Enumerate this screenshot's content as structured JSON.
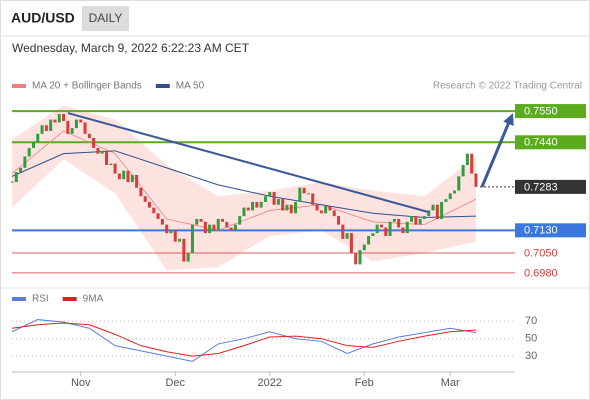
{
  "chart_data": {
    "type": "candlestick",
    "title": "AUD/USD",
    "timeframe": "DAILY",
    "subtitle": "Wednesday, March 9, 2022 6:22:23 AM CET",
    "source": "Research © 2022 Trading Central",
    "up_color": "#2e9e3e",
    "down_color": "#d83b3b",
    "close": [
      0.73,
      0.7335,
      0.735,
      0.739,
      0.742,
      0.744,
      0.747,
      0.75,
      0.748,
      0.752,
      0.751,
      0.754,
      0.7515,
      0.747,
      0.749,
      0.752,
      0.751,
      0.747,
      0.7455,
      0.742,
      0.74,
      0.741,
      0.736,
      0.7365,
      0.733,
      0.731,
      0.734,
      0.73,
      0.7325,
      0.728,
      0.725,
      0.723,
      0.721,
      0.719,
      0.717,
      0.715,
      0.712,
      0.713,
      0.709,
      0.71,
      0.702,
      0.705,
      0.715,
      0.717,
      0.716,
      0.712,
      0.715,
      0.713,
      0.717,
      0.716,
      0.714,
      0.713,
      0.715,
      0.718,
      0.721,
      0.72,
      0.723,
      0.721,
      0.723,
      0.725,
      0.7265,
      0.722,
      0.724,
      0.72,
      0.722,
      0.719,
      0.723,
      0.728,
      0.726,
      0.726,
      0.722,
      0.72,
      0.719,
      0.7215,
      0.72,
      0.718,
      0.715,
      0.71,
      0.712,
      0.705,
      0.701,
      0.706,
      0.708,
      0.711,
      0.712,
      0.715,
      0.714,
      0.711,
      0.716,
      0.717,
      0.714,
      0.712,
      0.716,
      0.718,
      0.715,
      0.717,
      0.718,
      0.72,
      0.722,
      0.717,
      0.723,
      0.724,
      0.726,
      0.727,
      0.732,
      0.736,
      0.74,
      0.733,
      0.7283
    ],
    "xlim": [
      0,
      108
    ],
    "ylim": [
      0.6955,
      0.7589
    ],
    "xticks": [
      {
        "value": 16,
        "label": "Nov"
      },
      {
        "value": 38,
        "label": "Dec"
      },
      {
        "value": 60,
        "label": "2022"
      },
      {
        "value": 82,
        "label": "Feb"
      },
      {
        "value": 102,
        "label": "Mar"
      }
    ],
    "indicators": [
      {
        "name": "MA 20 + Bollinger Bands",
        "color": "#f08080",
        "band_color": "#fde3e0",
        "x": [
          0,
          12,
          24,
          36,
          48,
          60,
          72,
          84,
          96,
          108
        ],
        "values": [
          0.733,
          0.748,
          0.74,
          0.717,
          0.713,
          0.72,
          0.722,
          0.716,
          0.715,
          0.724
        ],
        "upper": [
          0.745,
          0.757,
          0.752,
          0.736,
          0.725,
          0.727,
          0.73,
          0.727,
          0.725,
          0.739
        ],
        "lower": [
          0.721,
          0.738,
          0.726,
          0.699,
          0.7,
          0.711,
          0.713,
          0.702,
          0.705,
          0.709
        ]
      },
      {
        "name": "MA 50",
        "color": "#2f4f8f",
        "x": [
          0,
          12,
          24,
          36,
          48,
          60,
          72,
          84,
          96,
          108
        ],
        "values": [
          0.732,
          0.74,
          0.741,
          0.735,
          0.729,
          0.725,
          0.722,
          0.719,
          0.7175,
          0.718
        ]
      }
    ],
    "trendline": {
      "x": [
        13,
        97
      ],
      "values": [
        0.7543,
        0.7194
      ],
      "color": "#3a5a98"
    },
    "levels": [
      {
        "value": 0.755,
        "label": "0.7550",
        "color": "#5aab1e",
        "box": true,
        "line": "solid"
      },
      {
        "value": 0.744,
        "label": "0.7440",
        "color": "#5aab1e",
        "box": true,
        "line": "solid"
      },
      {
        "value": 0.7283,
        "label": "0.7283",
        "color": "#333333",
        "box": true,
        "line": "dotted"
      },
      {
        "value": 0.713,
        "label": "0.7130",
        "color": "#3a78e0",
        "box": true,
        "line": "solid"
      },
      {
        "value": 0.705,
        "label": "0.7050",
        "color": "#d83b3b",
        "box": false,
        "line": "solid"
      },
      {
        "value": 0.698,
        "label": "0.6980",
        "color": "#d83b3b",
        "box": false,
        "line": "solid"
      }
    ],
    "rsi": {
      "ylim": [
        14,
        83
      ],
      "yticks": [
        70,
        50,
        30
      ],
      "x": [
        0,
        6,
        12,
        18,
        24,
        30,
        36,
        42,
        48,
        54,
        60,
        66,
        72,
        78,
        84,
        90,
        96,
        102,
        108
      ],
      "series": [
        {
          "name": "RSI",
          "color": "#5b7fd6",
          "values": [
            58,
            72,
            69,
            62,
            42,
            36,
            30,
            24,
            44,
            50,
            58,
            50,
            47,
            33,
            44,
            52,
            57,
            62,
            57
          ]
        },
        {
          "name": "9MA",
          "color": "#e02020",
          "values": [
            62,
            66,
            68,
            66,
            55,
            42,
            35,
            30,
            33,
            42,
            52,
            53,
            50,
            42,
            40,
            47,
            53,
            58,
            60
          ]
        }
      ]
    }
  }
}
